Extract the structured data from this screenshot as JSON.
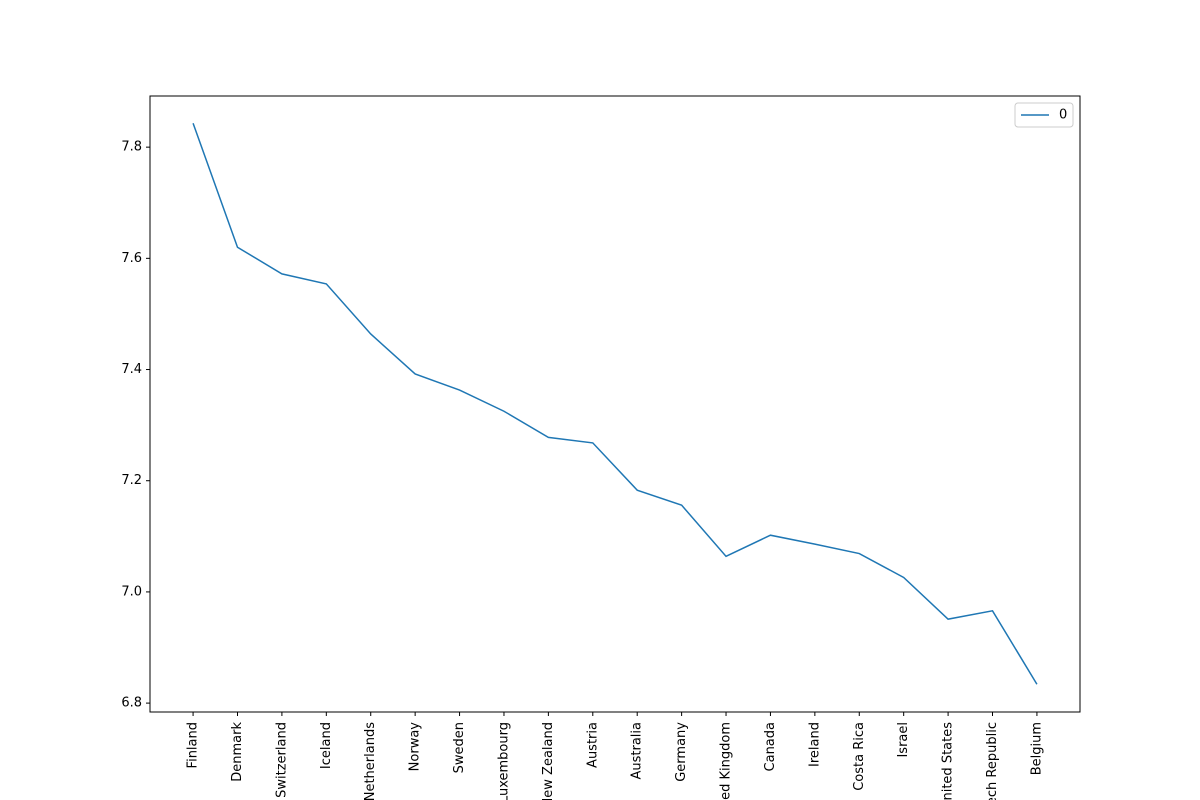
{
  "chart_data": {
    "type": "line",
    "categories": [
      "Finland",
      "Denmark",
      "Switzerland",
      "Iceland",
      "Netherlands",
      "Norway",
      "Sweden",
      "Luxembourg",
      "New Zealand",
      "Austria",
      "Australia",
      "Germany",
      "United Kingdom",
      "Canada",
      "Ireland",
      "Costa Rica",
      "Israel",
      "United States",
      "Czech Republic",
      "Belgium"
    ],
    "series": [
      {
        "name": "0",
        "color": "#1f77b4",
        "values": [
          7.843,
          7.62,
          7.572,
          7.554,
          7.464,
          7.392,
          7.363,
          7.325,
          7.278,
          7.268,
          7.183,
          7.156,
          7.064,
          7.102,
          7.086,
          7.069,
          7.026,
          6.951,
          6.966,
          6.834
        ]
      }
    ],
    "ylim": [
      6.784,
      7.892
    ],
    "yticks": [
      {
        "value": 6.8,
        "label": "6.8"
      },
      {
        "value": 7.0,
        "label": "7.0"
      },
      {
        "value": 7.2,
        "label": "7.2"
      },
      {
        "value": 7.4,
        "label": "7.4"
      },
      {
        "value": 7.6,
        "label": "7.6"
      },
      {
        "value": 7.8,
        "label": "7.8"
      }
    ],
    "legend": "upper right"
  }
}
